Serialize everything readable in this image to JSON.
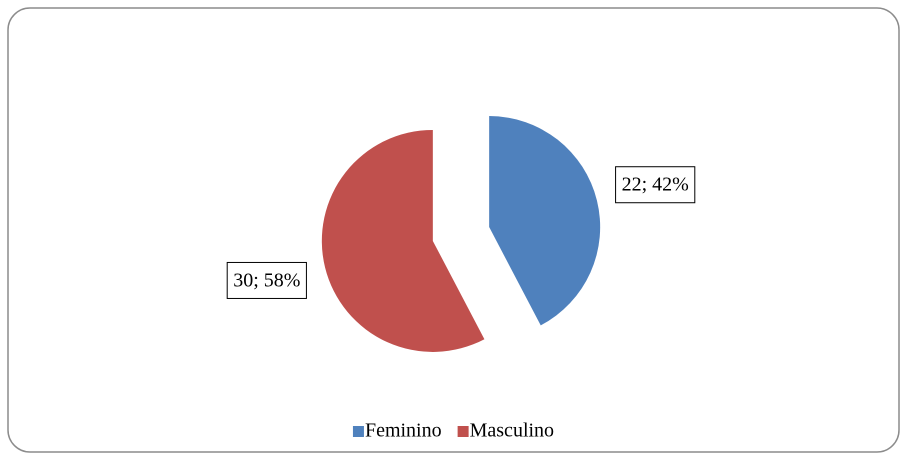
{
  "chart_data": {
    "type": "pie",
    "categories": [
      "Feminino",
      "Masculino"
    ],
    "values": [
      22,
      30
    ],
    "value_labels": [
      "22; 42%",
      "30; 58%"
    ],
    "colors": [
      "#4f81bd",
      "#c0504d"
    ],
    "legend": "bottom"
  }
}
